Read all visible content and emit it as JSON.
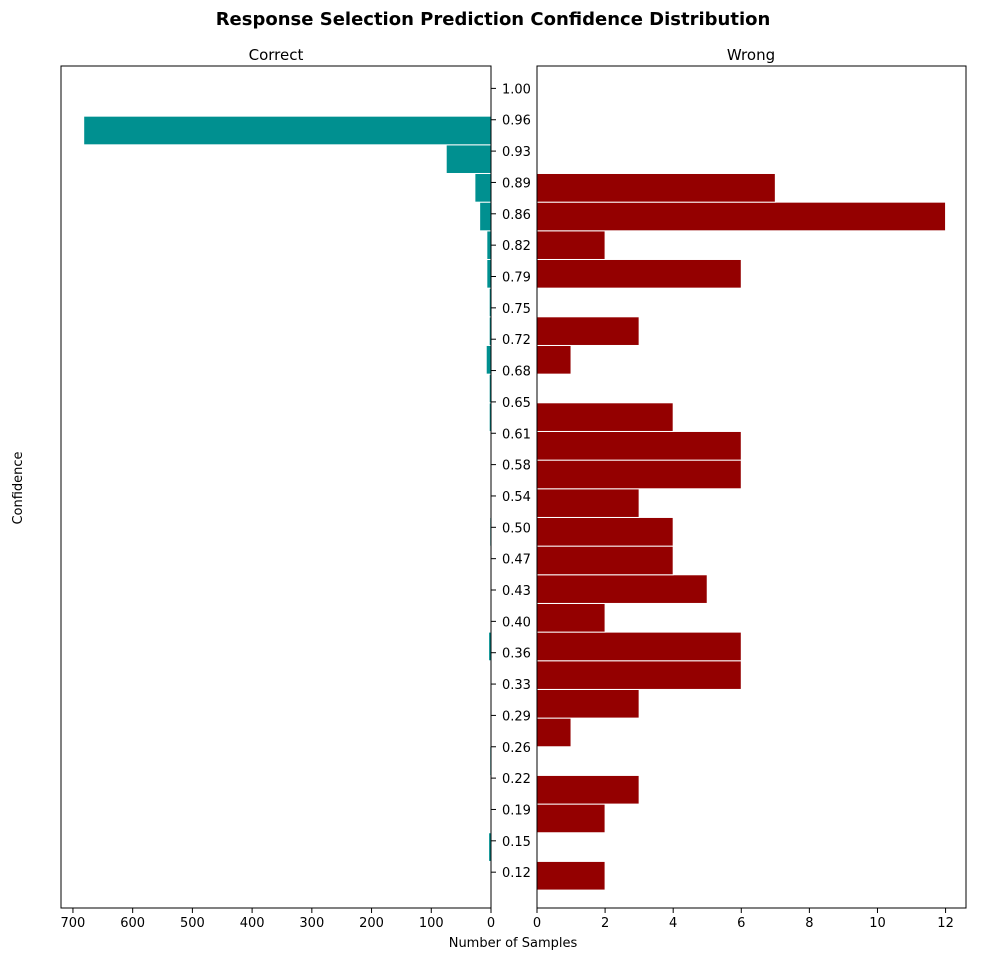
{
  "chart_data": {
    "type": "bar",
    "orientation": "horizontal",
    "title": "Response Selection Prediction Confidence Distribution",
    "xlabel": "Number of Samples",
    "ylabel": "Confidence",
    "bin_edges": [
      0.1,
      0.132,
      0.164,
      0.196,
      0.228,
      0.26,
      0.292,
      0.324,
      0.356,
      0.388,
      0.42,
      0.452,
      0.484,
      0.516,
      0.548,
      0.58,
      0.612,
      0.644,
      0.676,
      0.708,
      0.74,
      0.772,
      0.804,
      0.836,
      0.868,
      0.9,
      0.932,
      0.964,
      0.996
    ],
    "y_ticks": [
      "0.12",
      "0.15",
      "0.19",
      "0.22",
      "0.26",
      "0.29",
      "0.33",
      "0.36",
      "0.40",
      "0.43",
      "0.47",
      "0.50",
      "0.54",
      "0.58",
      "0.61",
      "0.65",
      "0.68",
      "0.72",
      "0.75",
      "0.79",
      "0.82",
      "0.86",
      "0.89",
      "0.93",
      "0.96",
      "1.00"
    ],
    "y_tick_values": [
      0.12,
      0.155,
      0.19,
      0.225,
      0.26,
      0.295,
      0.33,
      0.365,
      0.4,
      0.435,
      0.47,
      0.505,
      0.54,
      0.575,
      0.61,
      0.645,
      0.68,
      0.715,
      0.75,
      0.785,
      0.82,
      0.855,
      0.89,
      0.925,
      0.96,
      0.995
    ],
    "ylim": [
      0.08,
      1.02
    ],
    "panels": [
      {
        "name": "Correct",
        "color": "#009090",
        "direction": "left",
        "xlim": [
          720,
          0
        ],
        "x_ticks": [
          "700",
          "600",
          "500",
          "400",
          "300",
          "200",
          "100",
          "0"
        ],
        "x_tick_values": [
          700,
          600,
          500,
          400,
          300,
          200,
          100,
          0
        ],
        "values": [
          0,
          4,
          0,
          0,
          2,
          0,
          0,
          1,
          4,
          0,
          1,
          0,
          2,
          1,
          1,
          1,
          3,
          3,
          8,
          3,
          3,
          7,
          7,
          19,
          27,
          75,
          682,
          0
        ]
      },
      {
        "name": "Wrong",
        "color": "#940000",
        "direction": "right",
        "xlim": [
          0,
          12.6
        ],
        "x_ticks": [
          "0",
          "2",
          "4",
          "6",
          "8",
          "10",
          "12"
        ],
        "x_tick_values": [
          0,
          2,
          4,
          6,
          8,
          10,
          12
        ],
        "values": [
          2,
          0,
          2,
          3,
          0,
          1,
          3,
          6,
          6,
          2,
          5,
          4,
          4,
          3,
          6,
          6,
          4,
          0,
          1,
          3,
          0,
          6,
          2,
          12,
          7,
          0,
          0,
          0
        ]
      }
    ]
  }
}
